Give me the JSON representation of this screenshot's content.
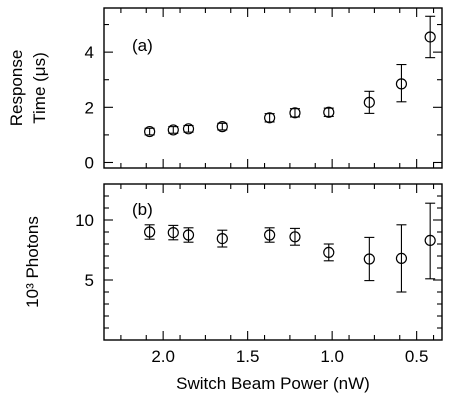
{
  "chart_data": [
    {
      "type": "scatter",
      "panel_label": "(a)",
      "ylabel_line1": "Response",
      "ylabel_line2": "Time (μs)",
      "xlim": [
        2.35,
        0.35
      ],
      "ylim": [
        -0.2,
        5.6
      ],
      "y_ticks": [
        "0",
        "2",
        "4"
      ],
      "y_tick_values": [
        0,
        2,
        4
      ],
      "y_minor_ticks": [
        1,
        3,
        5
      ],
      "x_minor_ticks": [
        2.25,
        2.1,
        1.9,
        1.75,
        1.6,
        1.4,
        1.25,
        1.1,
        0.9,
        0.75,
        0.6,
        0.4
      ],
      "series": [
        {
          "x": [
            2.08,
            1.94,
            1.85,
            1.65,
            1.37,
            1.22,
            1.02,
            0.78,
            0.59,
            0.42
          ],
          "y": [
            1.12,
            1.18,
            1.22,
            1.3,
            1.62,
            1.8,
            1.82,
            2.18,
            2.85,
            4.55
          ],
          "yerr_low": [
            0.12,
            0.12,
            0.12,
            0.12,
            0.15,
            0.15,
            0.15,
            0.4,
            0.65,
            0.75
          ],
          "yerr_high": [
            0.12,
            0.12,
            0.12,
            0.12,
            0.15,
            0.15,
            0.15,
            0.4,
            0.7,
            0.75
          ]
        }
      ]
    },
    {
      "type": "scatter",
      "panel_label": "(b)",
      "ylabel": "10³ Photons",
      "xlabel": "Switch Beam Power (nW)",
      "xlim": [
        2.35,
        0.35
      ],
      "ylim": [
        0,
        13
      ],
      "y_ticks": [
        "5",
        "10"
      ],
      "y_tick_values": [
        5,
        10
      ],
      "y_minor_ticks": [
        1,
        2,
        3,
        4,
        6,
        7,
        8,
        9,
        11,
        12
      ],
      "x_ticks": [
        "2.0",
        "1.5",
        "1.0",
        "0.5"
      ],
      "x_tick_values": [
        2.0,
        1.5,
        1.0,
        0.5
      ],
      "x_minor_ticks": [
        2.25,
        2.1,
        1.9,
        1.75,
        1.6,
        1.4,
        1.25,
        1.1,
        0.9,
        0.75,
        0.6,
        0.4
      ],
      "series": [
        {
          "x": [
            2.08,
            1.94,
            1.85,
            1.65,
            1.37,
            1.22,
            1.02,
            0.78,
            0.59,
            0.42
          ],
          "y": [
            9.0,
            8.95,
            8.75,
            8.45,
            8.75,
            8.6,
            7.3,
            6.75,
            6.8,
            8.3
          ],
          "yerr_low": [
            0.6,
            0.6,
            0.6,
            0.7,
            0.6,
            0.7,
            0.7,
            1.8,
            2.8,
            3.2
          ],
          "yerr_high": [
            0.6,
            0.6,
            0.6,
            0.7,
            0.6,
            0.7,
            0.7,
            1.8,
            2.8,
            3.1
          ]
        }
      ]
    }
  ]
}
